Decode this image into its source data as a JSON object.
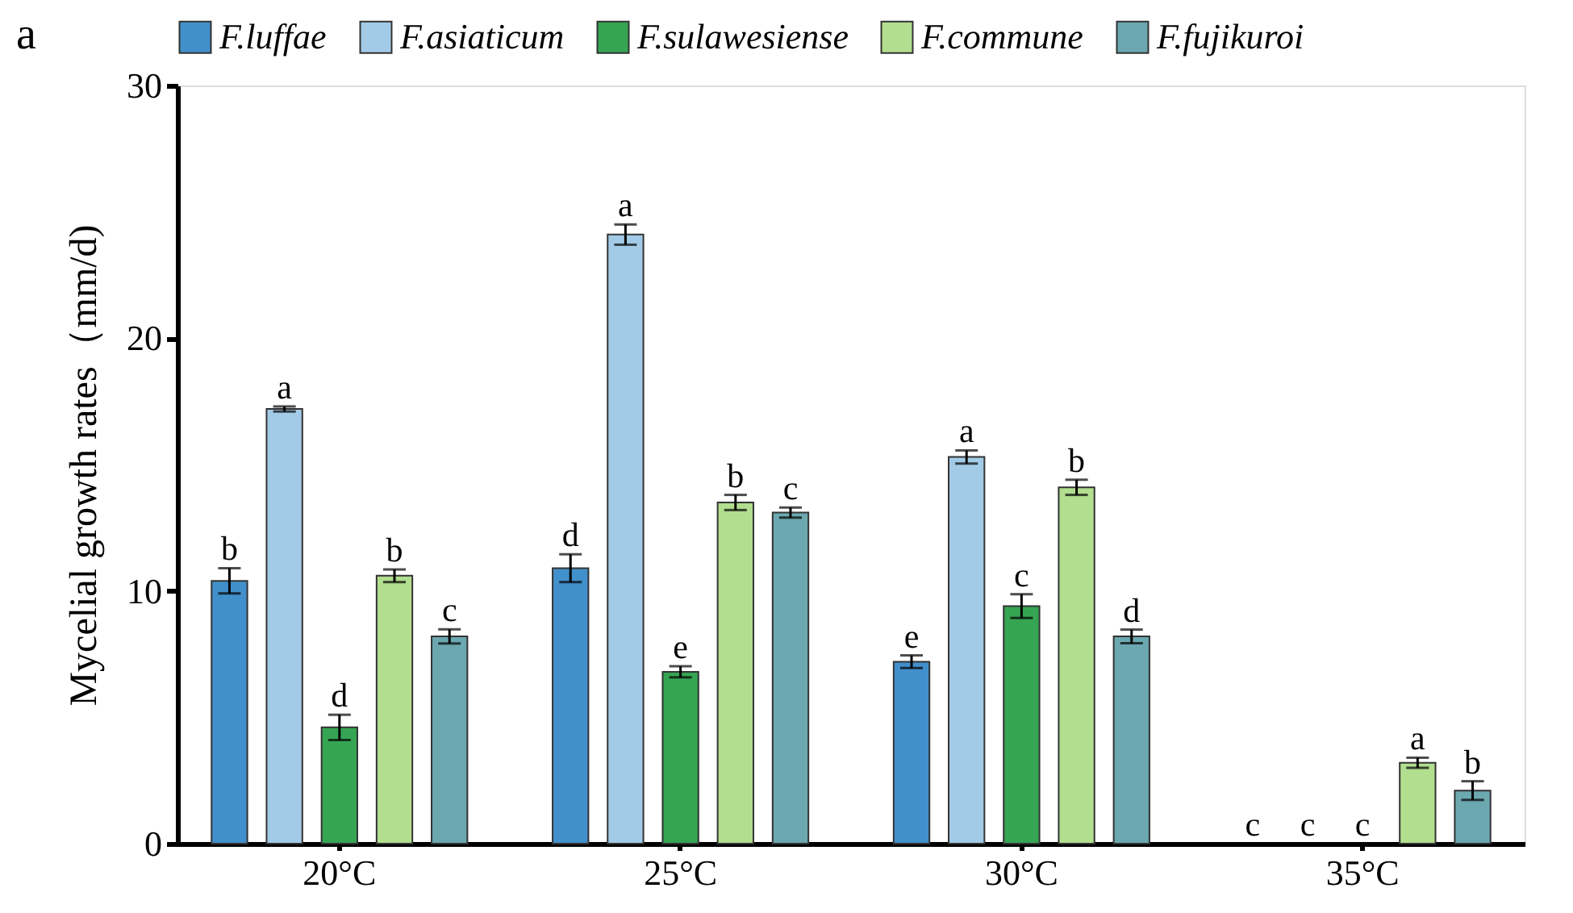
{
  "chart_data": {
    "type": "bar",
    "ylabel": "Mycelial growth rates（mm/d)",
    "categories": [
      "20°C",
      "25°C",
      "30°C",
      "35°C"
    ],
    "series": [
      {
        "name": "F.luffae",
        "color": "#4290cb",
        "values": [
          10.4,
          10.9,
          7.2,
          0
        ],
        "errors": [
          0.5,
          0.55,
          0.25,
          null
        ]
      },
      {
        "name": "F.asiaticum",
        "color": "#a3cbe7",
        "values": [
          17.2,
          24.1,
          15.3,
          0
        ],
        "errors": [
          0.1,
          0.4,
          0.26,
          null
        ]
      },
      {
        "name": "F.sulawesiense",
        "color": "#36a553",
        "values": [
          4.6,
          6.8,
          9.4,
          0
        ],
        "errors": [
          0.5,
          0.22,
          0.47,
          null
        ]
      },
      {
        "name": "F.commune",
        "color": "#b2de8f",
        "values": [
          10.6,
          13.5,
          14.1,
          3.2
        ],
        "errors": [
          0.25,
          0.3,
          0.3,
          0.2
        ]
      },
      {
        "name": "F.fujikuroi",
        "color": "#6ba8b0",
        "values": [
          8.2,
          13.1,
          8.2,
          2.1
        ],
        "errors": [
          0.28,
          0.2,
          0.27,
          0.37
        ]
      }
    ],
    "ylim": [
      0,
      30
    ],
    "yticks": [
      0,
      10,
      20,
      30
    ],
    "grid": false,
    "legend": "top",
    "annotations": [
      "a",
      "b",
      "d",
      "e",
      "c",
      "a",
      "a",
      "a",
      "c",
      "d",
      "e",
      "c",
      "c",
      "b",
      "b",
      "b",
      "a",
      "c",
      "c",
      "d",
      "b"
    ]
  }
}
